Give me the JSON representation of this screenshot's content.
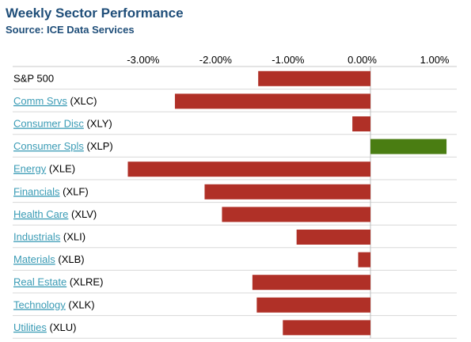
{
  "title": "Weekly Sector Performance",
  "subtitle": "Source: ICE Data Services",
  "colors": {
    "negative": "#b03027",
    "positive": "#4a7d12",
    "link": "#3a9bb5",
    "title": "#1f4e79",
    "grid": "#d8d8d8"
  },
  "chart_data": {
    "type": "bar",
    "orientation": "horizontal",
    "title": "Weekly Sector Performance",
    "subtitle": "Source: ICE Data Services",
    "xlim": [
      -3.5,
      1.2
    ],
    "x_ticks": [
      -3,
      -2,
      -1,
      0,
      1
    ],
    "x_tick_labels": [
      "-3.00%",
      "-2.00%",
      "-1.00%",
      "0.00%",
      "1.00%"
    ],
    "categories": [
      {
        "name": "S&P 500",
        "ticker": "",
        "link": false
      },
      {
        "name": "Comm Srvs",
        "ticker": "(XLC)",
        "link": true
      },
      {
        "name": "Consumer Disc",
        "ticker": "(XLY)",
        "link": true
      },
      {
        "name": "Consumer Spls",
        "ticker": "(XLP)",
        "link": true
      },
      {
        "name": "Energy",
        "ticker": "(XLE)",
        "link": true
      },
      {
        "name": "Financials",
        "ticker": "(XLF)",
        "link": true
      },
      {
        "name": "Health Care",
        "ticker": "(XLV)",
        "link": true
      },
      {
        "name": "Industrials",
        "ticker": "(XLI)",
        "link": true
      },
      {
        "name": "Materials",
        "ticker": "(XLB)",
        "link": true
      },
      {
        "name": "Real Estate",
        "ticker": "(XLRE)",
        "link": true
      },
      {
        "name": "Technology",
        "ticker": "(XLK)",
        "link": true
      },
      {
        "name": "Utilities",
        "ticker": "(XLU)",
        "link": true
      }
    ],
    "values": [
      -1.55,
      -2.7,
      -0.25,
      1.05,
      -3.35,
      -2.29,
      -2.05,
      -1.02,
      -0.17,
      -1.63,
      -1.57,
      -1.21
    ]
  }
}
